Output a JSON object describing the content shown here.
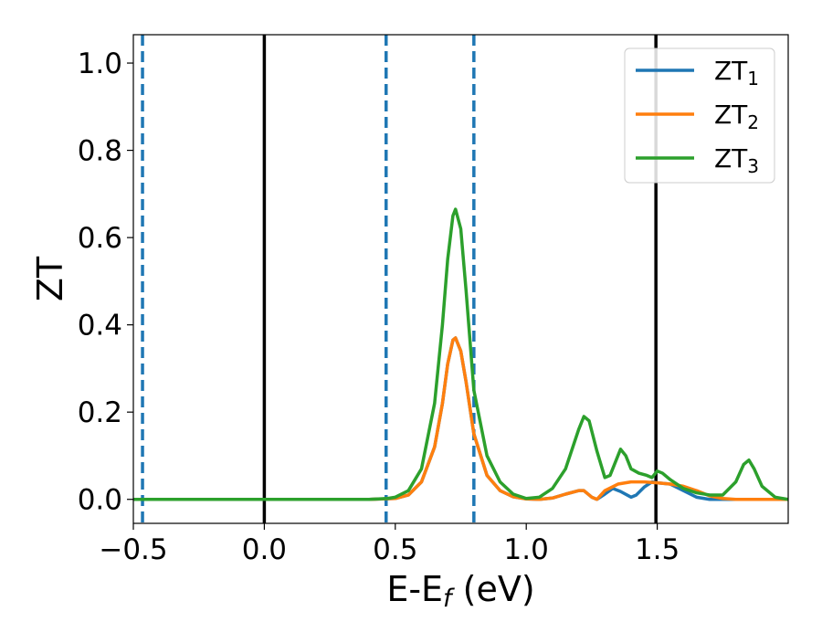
{
  "chart_data": {
    "type": "line",
    "title": "",
    "xlabel_main": "E-E",
    "xlabel_sub": "f",
    "xlabel_tail": " (eV)",
    "ylabel": "ZT",
    "xlim": [
      -0.5,
      2.0
    ],
    "ylim": [
      -0.055,
      1.065
    ],
    "xticks": [
      {
        "value": -0.5,
        "label": "−0.5"
      },
      {
        "value": 0.0,
        "label": "0.0"
      },
      {
        "value": 0.5,
        "label": "0.5"
      },
      {
        "value": 1.0,
        "label": "1.0"
      },
      {
        "value": 1.5,
        "label": "1.5"
      }
    ],
    "yticks": [
      {
        "value": 0.0,
        "label": "0.0"
      },
      {
        "value": 0.2,
        "label": "0.2"
      },
      {
        "value": 0.4,
        "label": "0.4"
      },
      {
        "value": 0.6,
        "label": "0.6"
      },
      {
        "value": 0.8,
        "label": "0.8"
      },
      {
        "value": 1.0,
        "label": "1.0"
      }
    ],
    "grid": false,
    "legend_position": "top-right",
    "vlines": [
      {
        "x": -0.465,
        "style": "dashed",
        "color": "#1f77b4"
      },
      {
        "x": 0.0,
        "style": "solid",
        "color": "#000000"
      },
      {
        "x": 0.465,
        "style": "dashed",
        "color": "#1f77b4"
      },
      {
        "x": 0.8,
        "style": "dashed",
        "color": "#1f77b4"
      },
      {
        "x": 1.495,
        "style": "solid",
        "color": "#000000"
      }
    ],
    "series": [
      {
        "name_main": "ZT",
        "name_sub": "1",
        "color": "#1f77b4",
        "points": [
          [
            -0.5,
            0.0
          ],
          [
            0.0,
            0.0
          ],
          [
            0.4,
            0.0
          ],
          [
            0.5,
            0.002
          ],
          [
            0.55,
            0.01
          ],
          [
            0.6,
            0.04
          ],
          [
            0.65,
            0.12
          ],
          [
            0.68,
            0.22
          ],
          [
            0.7,
            0.31
          ],
          [
            0.72,
            0.365
          ],
          [
            0.73,
            0.37
          ],
          [
            0.75,
            0.34
          ],
          [
            0.77,
            0.27
          ],
          [
            0.8,
            0.15
          ],
          [
            0.85,
            0.055
          ],
          [
            0.9,
            0.02
          ],
          [
            0.95,
            0.006
          ],
          [
            1.0,
            0.001
          ],
          [
            1.05,
            0.0
          ],
          [
            1.1,
            0.003
          ],
          [
            1.15,
            0.012
          ],
          [
            1.2,
            0.02
          ],
          [
            1.22,
            0.02
          ],
          [
            1.25,
            0.005
          ],
          [
            1.27,
            0.0
          ],
          [
            1.3,
            0.012
          ],
          [
            1.33,
            0.025
          ],
          [
            1.36,
            0.018
          ],
          [
            1.4,
            0.005
          ],
          [
            1.42,
            0.01
          ],
          [
            1.45,
            0.028
          ],
          [
            1.48,
            0.04
          ],
          [
            1.5,
            0.038
          ],
          [
            1.55,
            0.035
          ],
          [
            1.6,
            0.02
          ],
          [
            1.65,
            0.005
          ],
          [
            1.7,
            0.0
          ],
          [
            1.8,
            0.0
          ],
          [
            1.9,
            0.0
          ],
          [
            2.0,
            0.0
          ]
        ]
      },
      {
        "name_main": "ZT",
        "name_sub": "2",
        "color": "#ff7f0e",
        "points": [
          [
            -0.5,
            0.0
          ],
          [
            0.0,
            0.0
          ],
          [
            0.4,
            0.0
          ],
          [
            0.5,
            0.002
          ],
          [
            0.55,
            0.01
          ],
          [
            0.6,
            0.04
          ],
          [
            0.65,
            0.12
          ],
          [
            0.68,
            0.22
          ],
          [
            0.7,
            0.31
          ],
          [
            0.72,
            0.365
          ],
          [
            0.73,
            0.37
          ],
          [
            0.75,
            0.34
          ],
          [
            0.77,
            0.27
          ],
          [
            0.8,
            0.15
          ],
          [
            0.85,
            0.055
          ],
          [
            0.9,
            0.02
          ],
          [
            0.95,
            0.006
          ],
          [
            1.0,
            0.001
          ],
          [
            1.05,
            0.0
          ],
          [
            1.1,
            0.003
          ],
          [
            1.15,
            0.012
          ],
          [
            1.2,
            0.02
          ],
          [
            1.22,
            0.02
          ],
          [
            1.25,
            0.005
          ],
          [
            1.27,
            0.0
          ],
          [
            1.3,
            0.02
          ],
          [
            1.35,
            0.035
          ],
          [
            1.4,
            0.04
          ],
          [
            1.45,
            0.04
          ],
          [
            1.5,
            0.038
          ],
          [
            1.55,
            0.035
          ],
          [
            1.6,
            0.03
          ],
          [
            1.65,
            0.02
          ],
          [
            1.7,
            0.008
          ],
          [
            1.75,
            0.002
          ],
          [
            1.8,
            0.0
          ],
          [
            1.9,
            0.0
          ],
          [
            2.0,
            0.0
          ]
        ]
      },
      {
        "name_main": "ZT",
        "name_sub": "3",
        "color": "#2ca02c",
        "points": [
          [
            -0.5,
            0.0
          ],
          [
            0.0,
            0.0
          ],
          [
            0.4,
            0.0
          ],
          [
            0.47,
            0.002
          ],
          [
            0.5,
            0.005
          ],
          [
            0.55,
            0.02
          ],
          [
            0.6,
            0.07
          ],
          [
            0.65,
            0.22
          ],
          [
            0.68,
            0.4
          ],
          [
            0.7,
            0.55
          ],
          [
            0.72,
            0.65
          ],
          [
            0.73,
            0.665
          ],
          [
            0.75,
            0.62
          ],
          [
            0.77,
            0.48
          ],
          [
            0.8,
            0.25
          ],
          [
            0.85,
            0.1
          ],
          [
            0.9,
            0.04
          ],
          [
            0.95,
            0.012
          ],
          [
            1.0,
            0.002
          ],
          [
            1.05,
            0.005
          ],
          [
            1.1,
            0.025
          ],
          [
            1.15,
            0.07
          ],
          [
            1.2,
            0.16
          ],
          [
            1.22,
            0.19
          ],
          [
            1.24,
            0.18
          ],
          [
            1.27,
            0.11
          ],
          [
            1.3,
            0.05
          ],
          [
            1.32,
            0.055
          ],
          [
            1.35,
            0.1
          ],
          [
            1.36,
            0.115
          ],
          [
            1.38,
            0.1
          ],
          [
            1.4,
            0.07
          ],
          [
            1.43,
            0.06
          ],
          [
            1.46,
            0.055
          ],
          [
            1.48,
            0.05
          ],
          [
            1.5,
            0.065
          ],
          [
            1.52,
            0.06
          ],
          [
            1.55,
            0.045
          ],
          [
            1.6,
            0.025
          ],
          [
            1.65,
            0.015
          ],
          [
            1.7,
            0.01
          ],
          [
            1.75,
            0.01
          ],
          [
            1.8,
            0.04
          ],
          [
            1.83,
            0.08
          ],
          [
            1.85,
            0.09
          ],
          [
            1.87,
            0.07
          ],
          [
            1.9,
            0.03
          ],
          [
            1.95,
            0.005
          ],
          [
            2.0,
            0.0
          ]
        ]
      }
    ]
  }
}
